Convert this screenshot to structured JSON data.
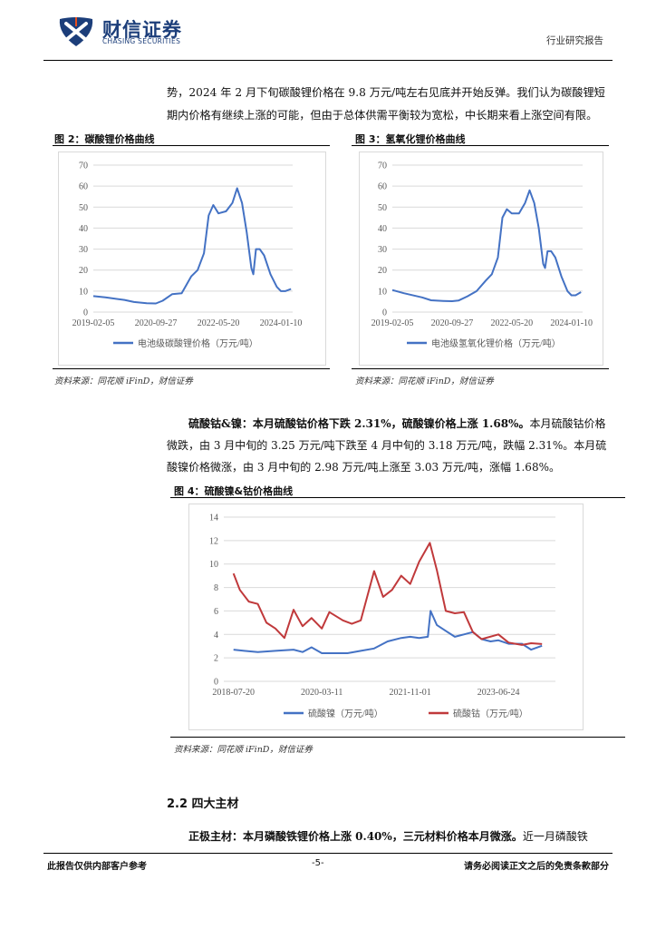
{
  "header": {
    "brand_cn": "财信证券",
    "brand_en": "CHASING SECURITIES",
    "category": "行业研究报告"
  },
  "body": {
    "para1_line1": "势，2024 年 2 月下旬碳酸锂价格在 9.8 万元/吨左右见底并开始反弹。我们认为碳酸锂短",
    "para1_line2": "期内价格有继续上涨的可能，但由于总体供需平衡较为宽松，中长期来看上涨空间有限。",
    "para2_lead": "硫酸钴&镍：本月硫酸钴价格下跌 2.31%，硫酸镍价格上涨 1.68%。",
    "para2_rest1": "本月硫酸钴价格",
    "para2_line2": "微跌，由 3 月中旬的 3.25 万元/吨下跌至 4 月中旬的 3.18 万元/吨，跌幅 2.31%。本月硫",
    "para2_line3": "酸镍价格微涨，由 3 月中旬的 2.98 万元/吨上涨至 3.03 万元/吨，涨幅 1.68%。",
    "section_title": "2.2 四大主材",
    "para3_lead": "正极主材：本月磷酸铁锂价格上涨 0.40%，三元材料价格本月微涨。",
    "para3_rest": "近一月磷酸铁"
  },
  "figures": {
    "fig2_title": "图 2：碳酸锂价格曲线",
    "fig3_title": "图 3：氢氧化锂价格曲线",
    "fig4_title": "图 4：硫酸镍&钴价格曲线",
    "source_fig2": "资料来源：同花顺 iFinD，财信证券",
    "source_fig3": "资料来源：同花顺 iFinD，财信证券",
    "source_fig4": "资料来源：同花顺 iFinD，财信证券"
  },
  "footer": {
    "left": "此报告仅供内部客户参考",
    "page": "-5-",
    "right": "请务必阅读正文之后的免责条款部分"
  },
  "chart_data": [
    {
      "type": "line",
      "title": "",
      "x_ticks": [
        "2019-02-05",
        "2020-09-27",
        "2022-05-20",
        "2024-01-10"
      ],
      "ylim": [
        0,
        70
      ],
      "y_ticks": [
        0,
        10,
        20,
        30,
        40,
        50,
        60,
        70
      ],
      "legend_position": "bottom",
      "series": [
        {
          "name": "电池级碳酸锂价格（万元/吨）",
          "color": "#4472c4",
          "x": [
            "2019-02-05",
            "2019-06-01",
            "2019-12-01",
            "2020-03-01",
            "2020-07-01",
            "2020-09-27",
            "2020-12-01",
            "2021-03-01",
            "2021-06-01",
            "2021-09-01",
            "2021-11-01",
            "2022-01-01",
            "2022-02-15",
            "2022-04-01",
            "2022-05-20",
            "2022-08-01",
            "2022-10-01",
            "2022-11-15",
            "2023-01-01",
            "2023-02-15",
            "2023-04-01",
            "2023-04-20",
            "2023-05-15",
            "2023-06-20",
            "2023-08-01",
            "2023-10-01",
            "2023-12-01",
            "2024-01-10",
            "2024-02-20",
            "2024-04-15"
          ],
          "values": [
            7.6,
            7.0,
            5.8,
            4.8,
            4.2,
            4.1,
            5.4,
            8.5,
            9.0,
            17,
            20,
            28,
            46,
            51,
            47,
            48,
            52,
            59,
            52,
            38,
            21,
            18,
            30,
            30,
            27,
            18,
            12,
            10,
            10,
            11
          ]
        }
      ]
    },
    {
      "type": "line",
      "title": "",
      "x_ticks": [
        "2019-02-05",
        "2020-09-27",
        "2022-05-20",
        "2024-01-10"
      ],
      "ylim": [
        0,
        70
      ],
      "y_ticks": [
        0,
        10,
        20,
        30,
        40,
        50,
        60,
        70
      ],
      "legend_position": "bottom",
      "series": [
        {
          "name": "电池级氢氧化锂价格（万元/吨）",
          "color": "#4472c4",
          "x": [
            "2019-02-05",
            "2019-06-01",
            "2019-12-01",
            "2020-03-01",
            "2020-07-01",
            "2020-09-27",
            "2020-12-01",
            "2021-03-01",
            "2021-06-01",
            "2021-09-01",
            "2021-11-01",
            "2022-01-01",
            "2022-02-15",
            "2022-04-01",
            "2022-05-20",
            "2022-08-01",
            "2022-10-01",
            "2022-11-15",
            "2023-01-01",
            "2023-02-15",
            "2023-04-01",
            "2023-04-20",
            "2023-05-15",
            "2023-06-20",
            "2023-08-01",
            "2023-10-01",
            "2023-12-01",
            "2024-01-10",
            "2024-02-20",
            "2024-04-15"
          ],
          "values": [
            10.5,
            9.0,
            7.0,
            5.6,
            5.3,
            5.2,
            5.5,
            7.5,
            10,
            15,
            18,
            26,
            45,
            49,
            47,
            47,
            52,
            58,
            52,
            40,
            23,
            21,
            29,
            29,
            26,
            17,
            10,
            8,
            8,
            9.5
          ]
        }
      ]
    },
    {
      "type": "line",
      "title": "",
      "x_ticks": [
        "2018-07-20",
        "2020-03-11",
        "2021-11-01",
        "2023-06-24"
      ],
      "ylim": [
        0,
        14
      ],
      "y_ticks": [
        0,
        2,
        4,
        6,
        8,
        10,
        12,
        14
      ],
      "legend_position": "bottom",
      "series": [
        {
          "name": "硫酸镍（万元/吨）",
          "color": "#4472c4",
          "x": [
            "2018-07-20",
            "2018-10-01",
            "2019-01-01",
            "2019-05-01",
            "2019-09-01",
            "2019-11-01",
            "2020-01-01",
            "2020-03-11",
            "2020-06-01",
            "2020-09-01",
            "2020-12-01",
            "2021-03-01",
            "2021-06-01",
            "2021-09-01",
            "2021-11-01",
            "2022-01-01",
            "2022-03-01",
            "2022-03-20",
            "2022-05-01",
            "2022-07-01",
            "2022-09-01",
            "2022-11-01",
            "2023-01-01",
            "2023-03-01",
            "2023-05-01",
            "2023-06-24",
            "2023-09-01",
            "2023-12-01",
            "2024-02-01",
            "2024-04-15"
          ],
          "values": [
            2.7,
            2.6,
            2.5,
            2.6,
            2.7,
            2.5,
            2.9,
            2.4,
            2.4,
            2.4,
            2.6,
            2.8,
            3.4,
            3.7,
            3.8,
            3.7,
            3.8,
            6.0,
            4.8,
            4.3,
            3.8,
            4.0,
            4.2,
            3.6,
            3.4,
            3.5,
            3.2,
            3.2,
            2.7,
            3.03
          ]
        },
        {
          "name": "硫酸钴（万元/吨）",
          "color": "#c0393b",
          "x": [
            "2018-07-20",
            "2018-09-01",
            "2018-11-01",
            "2019-01-01",
            "2019-03-01",
            "2019-05-01",
            "2019-07-01",
            "2019-09-01",
            "2019-11-01",
            "2020-01-01",
            "2020-03-11",
            "2020-05-01",
            "2020-08-01",
            "2020-10-01",
            "2020-12-01",
            "2021-03-01",
            "2021-05-01",
            "2021-07-01",
            "2021-09-01",
            "2021-11-01",
            "2022-01-01",
            "2022-03-15",
            "2022-05-01",
            "2022-07-01",
            "2022-09-01",
            "2022-11-01",
            "2023-01-01",
            "2023-03-01",
            "2023-06-24",
            "2023-09-01",
            "2023-12-01",
            "2024-02-01",
            "2024-04-15"
          ],
          "values": [
            9.2,
            7.8,
            6.8,
            6.6,
            5.0,
            4.5,
            3.7,
            6.1,
            4.7,
            5.4,
            4.5,
            5.9,
            5.2,
            4.9,
            5.2,
            9.4,
            7.2,
            7.8,
            9.0,
            8.3,
            10.2,
            11.8,
            9.5,
            6.0,
            5.8,
            5.9,
            4.2,
            3.6,
            4.0,
            3.3,
            3.1,
            3.25,
            3.18
          ]
        }
      ]
    }
  ]
}
